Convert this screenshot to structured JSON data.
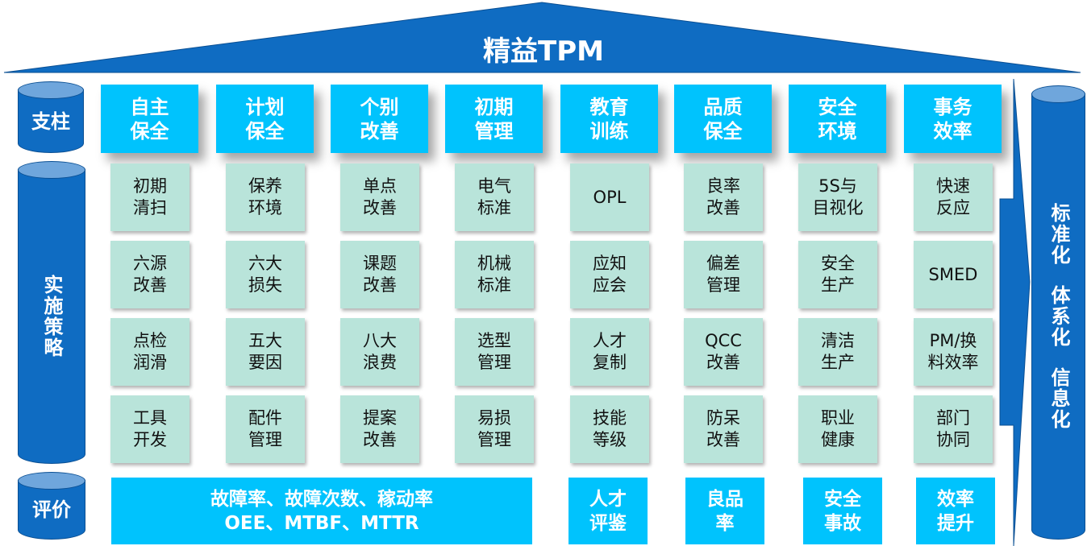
{
  "title": "精益TPM",
  "colors": {
    "roof": "#0f6cc2",
    "header": "#00c3fd",
    "card": "#b9e4da",
    "cylinder": "#0f6cc2"
  },
  "left_labels": {
    "pillar": "支柱",
    "strategy": "实施策略",
    "evaluation": "评价"
  },
  "right_label": [
    "标准化",
    "体系化",
    "信息化"
  ],
  "columns": [
    {
      "header": "自主\n保全",
      "items": [
        "初期\n清扫",
        "六源\n改善",
        "点检\n润滑",
        "工具\n开发"
      ]
    },
    {
      "header": "计划\n保全",
      "items": [
        "保养\n环境",
        "六大\n损失",
        "五大\n要因",
        "配件\n管理"
      ]
    },
    {
      "header": "个别\n改善",
      "items": [
        "单点\n改善",
        "课题\n改善",
        "八大\n浪费",
        "提案\n改善"
      ]
    },
    {
      "header": "初期\n管理",
      "items": [
        "电气\n标准",
        "机械\n标准",
        "选型\n管理",
        "易损\n管理"
      ]
    },
    {
      "header": "教育\n训练",
      "items": [
        "OPL",
        "应知\n应会",
        "人才\n复制",
        "技能\n等级"
      ]
    },
    {
      "header": "品质\n保全",
      "items": [
        "良率\n改善",
        "偏差\n管理",
        "QCC\n改善",
        "防呆\n改善"
      ]
    },
    {
      "header": "安全\n环境",
      "items": [
        "5S与\n目视化",
        "安全\n生产",
        "清洁\n生产",
        "职业\n健康"
      ]
    },
    {
      "header": "事务\n效率",
      "items": [
        "快速\n反应",
        "SMED",
        "PM/换\n料效率",
        "部门\n协同"
      ]
    }
  ],
  "evaluations": [
    "故障率、故障次数、稼动率\nOEE、MTBF、MTTR",
    "人才\n评鉴",
    "良品\n率",
    "安全\n事故",
    "效率\n提升"
  ]
}
